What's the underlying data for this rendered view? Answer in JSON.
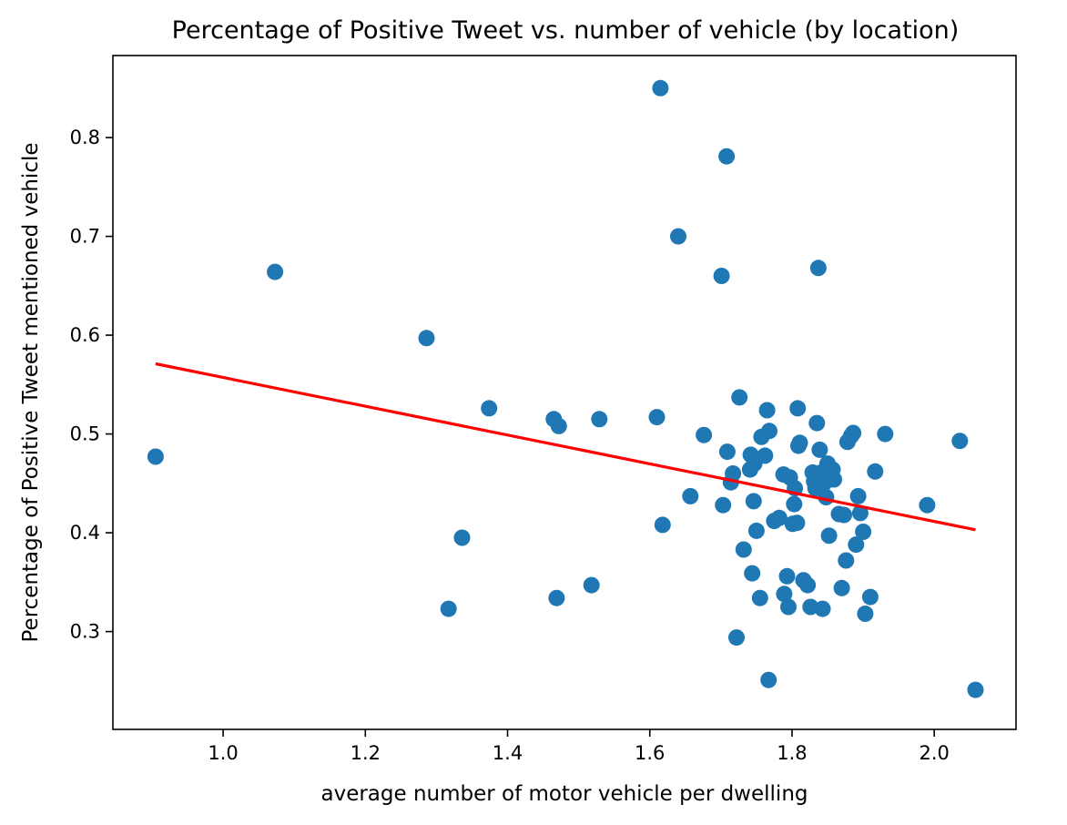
{
  "chart_data": {
    "type": "scatter",
    "title": "Percentage of Positive Tweet vs. number of vehicle (by location)",
    "xlabel": "average number of motor vehicle per dwelling",
    "ylabel": "Percentage of Positive Tweet mentioned vehicle",
    "xlim": [
      0.845,
      2.115
    ],
    "ylim": [
      0.201,
      0.883
    ],
    "xticks": [
      1.0,
      1.2,
      1.4,
      1.6,
      1.8,
      2.0
    ],
    "xtick_labels": [
      "1.0",
      "1.2",
      "1.4",
      "1.6",
      "1.8",
      "2.0"
    ],
    "yticks": [
      0.3,
      0.4,
      0.5,
      0.6,
      0.7,
      0.8
    ],
    "ytick_labels": [
      "0.3",
      "0.4",
      "0.5",
      "0.6",
      "0.7",
      "0.8"
    ],
    "grid": false,
    "series": [
      {
        "kind": "scatter",
        "color": "#1f77b4",
        "points": [
          [
            0.905,
            0.477
          ],
          [
            1.073,
            0.664
          ],
          [
            1.286,
            0.597
          ],
          [
            1.317,
            0.323
          ],
          [
            1.336,
            0.395
          ],
          [
            1.374,
            0.526
          ],
          [
            1.465,
            0.515
          ],
          [
            1.469,
            0.334
          ],
          [
            1.472,
            0.508
          ],
          [
            1.518,
            0.347
          ],
          [
            1.529,
            0.515
          ],
          [
            1.61,
            0.517
          ],
          [
            1.615,
            0.85
          ],
          [
            1.618,
            0.408
          ],
          [
            1.64,
            0.7
          ],
          [
            1.657,
            0.437
          ],
          [
            1.676,
            0.499
          ],
          [
            1.701,
            0.66
          ],
          [
            1.703,
            0.428
          ],
          [
            1.708,
            0.781
          ],
          [
            1.709,
            0.482
          ],
          [
            1.714,
            0.451
          ],
          [
            1.717,
            0.46
          ],
          [
            1.722,
            0.294
          ],
          [
            1.726,
            0.537
          ],
          [
            1.732,
            0.383
          ],
          [
            1.741,
            0.464
          ],
          [
            1.742,
            0.479
          ],
          [
            1.744,
            0.359
          ],
          [
            1.746,
            0.432
          ],
          [
            1.747,
            0.47
          ],
          [
            1.75,
            0.402
          ],
          [
            1.755,
            0.334
          ],
          [
            1.757,
            0.497
          ],
          [
            1.762,
            0.478
          ],
          [
            1.765,
            0.524
          ],
          [
            1.767,
            0.251
          ],
          [
            1.768,
            0.503
          ],
          [
            1.775,
            0.412
          ],
          [
            1.782,
            0.415
          ],
          [
            1.788,
            0.459
          ],
          [
            1.789,
            0.338
          ],
          [
            1.793,
            0.356
          ],
          [
            1.795,
            0.325
          ],
          [
            1.797,
            0.456
          ],
          [
            1.801,
            0.409
          ],
          [
            1.803,
            0.429
          ],
          [
            1.804,
            0.445
          ],
          [
            1.807,
            0.41
          ],
          [
            1.808,
            0.526
          ],
          [
            1.809,
            0.488
          ],
          [
            1.811,
            0.491
          ],
          [
            1.816,
            0.352
          ],
          [
            1.822,
            0.347
          ],
          [
            1.826,
            0.325
          ],
          [
            1.829,
            0.461
          ],
          [
            1.831,
            0.452
          ],
          [
            1.833,
            0.445
          ],
          [
            1.835,
            0.511
          ],
          [
            1.837,
            0.668
          ],
          [
            1.839,
            0.484
          ],
          [
            1.841,
            0.461
          ],
          [
            1.843,
            0.323
          ],
          [
            1.845,
            0.45
          ],
          [
            1.848,
            0.436
          ],
          [
            1.85,
            0.47
          ],
          [
            1.852,
            0.397
          ],
          [
            1.857,
            0.464
          ],
          [
            1.859,
            0.454
          ],
          [
            1.866,
            0.419
          ],
          [
            1.87,
            0.344
          ],
          [
            1.873,
            0.418
          ],
          [
            1.876,
            0.372
          ],
          [
            1.878,
            0.492
          ],
          [
            1.883,
            0.498
          ],
          [
            1.886,
            0.501
          ],
          [
            1.89,
            0.388
          ],
          [
            1.893,
            0.437
          ],
          [
            1.896,
            0.42
          ],
          [
            1.9,
            0.401
          ],
          [
            1.903,
            0.318
          ],
          [
            1.91,
            0.335
          ],
          [
            1.917,
            0.462
          ],
          [
            1.931,
            0.5
          ],
          [
            1.99,
            0.428
          ],
          [
            2.036,
            0.493
          ],
          [
            2.058,
            0.241
          ]
        ]
      },
      {
        "kind": "line",
        "color": "#ff0000",
        "points": [
          [
            0.905,
            0.571
          ],
          [
            2.058,
            0.403
          ]
        ]
      }
    ]
  }
}
